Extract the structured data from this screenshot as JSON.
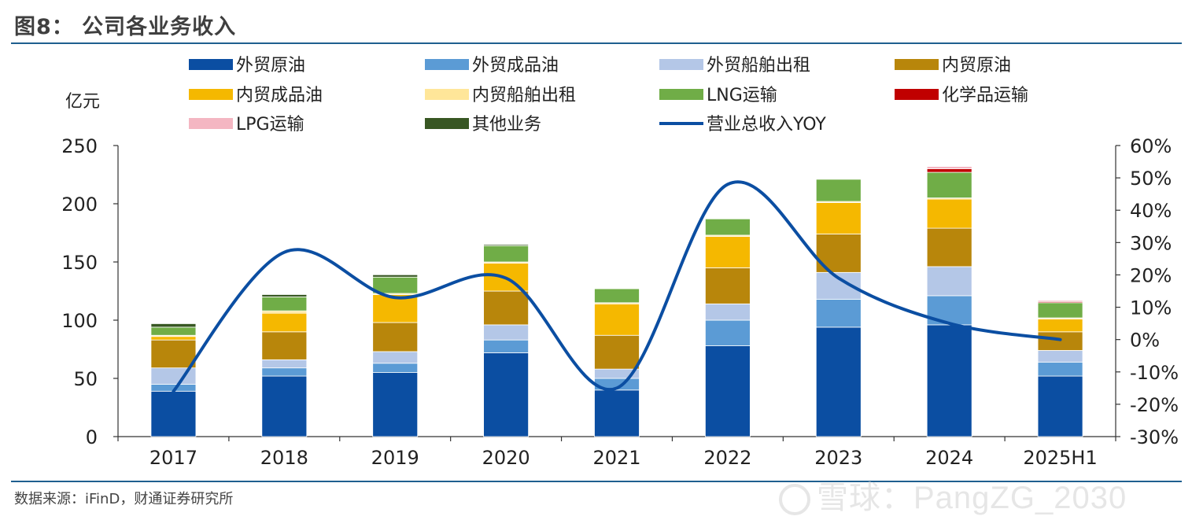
{
  "header": {
    "title": "图8： 公司各业务收入"
  },
  "footer": {
    "source": "数据来源：iFinD，财通证券研究所",
    "watermark": "雪球：PangZG_2030"
  },
  "chart_data": {
    "type": "bar",
    "stacked": true,
    "y_unit_label": "亿元",
    "ylim": [
      0,
      250
    ],
    "y_ticks": [
      0,
      50,
      100,
      150,
      200,
      250
    ],
    "y2lim": [
      -0.3,
      0.6
    ],
    "y2_ticks": [
      "-30%",
      "-20%",
      "-10%",
      "0%",
      "10%",
      "20%",
      "30%",
      "40%",
      "50%",
      "60%"
    ],
    "categories": [
      "2017",
      "2018",
      "2019",
      "2020",
      "2021",
      "2022",
      "2023",
      "2024",
      "2025H1"
    ],
    "series": [
      {
        "name": "外贸原油",
        "color": "#0b4ea2",
        "values": [
          39,
          52,
          55,
          72,
          40,
          78,
          94,
          96,
          52
        ]
      },
      {
        "name": "外贸成品油",
        "color": "#5b9bd5",
        "values": [
          6,
          7,
          8,
          11,
          10,
          22,
          24,
          25,
          12
        ]
      },
      {
        "name": "外贸船舶出租",
        "color": "#b4c7e7",
        "values": [
          14,
          7,
          10,
          13,
          8,
          14,
          23,
          25,
          10
        ]
      },
      {
        "name": "内贸原油",
        "color": "#b8860b",
        "values": [
          24,
          24,
          25,
          29,
          29,
          31,
          33,
          33,
          16
        ]
      },
      {
        "name": "内贸成品油",
        "color": "#f5b800",
        "values": [
          3,
          16,
          24,
          24,
          27,
          27,
          27,
          25,
          11
        ]
      },
      {
        "name": "内贸船舶出租",
        "color": "#ffe699",
        "values": [
          1,
          2,
          1,
          1,
          1,
          1,
          1,
          1,
          1
        ]
      },
      {
        "name": "LNG运输",
        "color": "#70ad47",
        "values": [
          7,
          12,
          14,
          14,
          12,
          14,
          19,
          22,
          13
        ]
      },
      {
        "name": "化学品运输",
        "color": "#c00000",
        "values": [
          0,
          0,
          0,
          0,
          0,
          0,
          0,
          3,
          1
        ]
      },
      {
        "name": "LPG运输",
        "color": "#f4b6c2",
        "values": [
          0,
          0,
          0,
          0,
          0,
          0,
          0,
          2,
          1
        ]
      },
      {
        "name": "其他业务",
        "color": "#385723",
        "values": [
          3,
          2,
          2,
          1,
          0,
          0,
          0,
          0,
          0
        ]
      }
    ],
    "line": {
      "name": "营业总收入YOY",
      "color": "#0b4ea2",
      "values": [
        -0.16,
        0.27,
        0.13,
        0.19,
        -0.15,
        0.48,
        0.19,
        0.05,
        0.0
      ]
    },
    "legend_position": "top"
  }
}
